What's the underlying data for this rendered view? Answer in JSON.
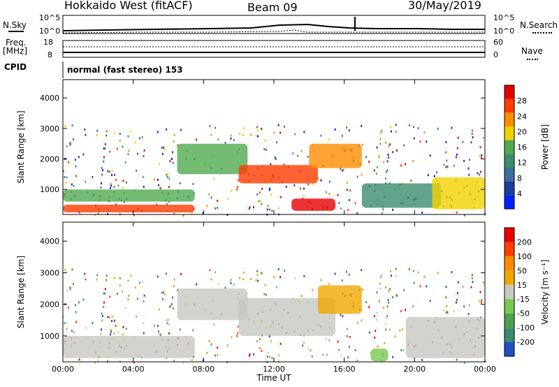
{
  "header": {
    "station": "Hokkaido West (fitACF)",
    "beam": "Beam 09",
    "date": "30/May/2019"
  },
  "left_labels": {
    "nsky": "N.Sky",
    "freq_top": "Freq.",
    "freq_unit": "[MHz]",
    "cpid": "CPID"
  },
  "right_labels": {
    "nsearch": "N.Search",
    "nave": "Nave"
  },
  "noise_axis": {
    "left_ticks": [
      "10^5",
      "10^0"
    ],
    "right_ticks": [
      "10^5",
      "10^0"
    ]
  },
  "freq_axis": {
    "left_ticks": [
      "18",
      "8"
    ],
    "right_ticks": [
      "60",
      "0"
    ]
  },
  "cpid_text": "normal (fast stereo) 153",
  "x_axis": {
    "label": "Time UT",
    "ticks": [
      "00:00",
      "04:00",
      "08:00",
      "12:00",
      "16:00",
      "20:00",
      "00:00"
    ]
  },
  "power_panel": {
    "ylabel": "Slant Range [km]",
    "yticks": [
      "1000",
      "2000",
      "3000",
      "4000"
    ],
    "colorbar_label": "Power [dB]",
    "colorbar_ticks": [
      "28",
      "24",
      "20",
      "16",
      "12",
      "8",
      "4"
    ]
  },
  "velocity_panel": {
    "ylabel": "Slant Range [km]",
    "yticks": [
      "1000",
      "2000",
      "3000",
      "4000"
    ],
    "colorbar_label": "Velocity [m s⁻¹]",
    "colorbar_ticks": [
      "200",
      "100",
      "50",
      "15",
      "-15",
      "-50",
      "-100",
      "-200"
    ]
  },
  "chart_data": [
    {
      "type": "heatmap",
      "title": "Power",
      "xlabel": "Time UT",
      "ylabel": "Slant Range [km]",
      "xlim": [
        0,
        24
      ],
      "ylim": [
        180,
        4600
      ],
      "colorbar": {
        "label": "Power [dB]",
        "range": [
          0,
          30
        ],
        "colors": [
          "#0020ff",
          "#1e3c9b",
          "#3c6ea0",
          "#3c8c6e",
          "#50aa50",
          "#f0d200",
          "#ff8c00",
          "#ff3c00",
          "#e60000"
        ]
      },
      "regions": [
        {
          "t": [
            0,
            7.5
          ],
          "r": [
            250,
            500
          ],
          "value": 26
        },
        {
          "t": [
            0,
            7.5
          ],
          "r": [
            600,
            1000
          ],
          "value": 14
        },
        {
          "t": [
            6.5,
            10.5
          ],
          "r": [
            1500,
            2500
          ],
          "value": 16
        },
        {
          "t": [
            10,
            14.5
          ],
          "r": [
            1200,
            1800
          ],
          "value": 24
        },
        {
          "t": [
            13,
            15.5
          ],
          "r": [
            300,
            700
          ],
          "value": 28
        },
        {
          "t": [
            14,
            17
          ],
          "r": [
            1700,
            2500
          ],
          "value": 20
        },
        {
          "t": [
            17,
            21.5
          ],
          "r": [
            400,
            1200
          ],
          "value": 10
        },
        {
          "t": [
            21,
            24
          ],
          "r": [
            350,
            1400
          ],
          "value": 18
        }
      ]
    },
    {
      "type": "heatmap",
      "title": "Velocity",
      "xlabel": "Time UT",
      "ylabel": "Slant Range [km]",
      "xlim": [
        0,
        24
      ],
      "ylim": [
        180,
        4600
      ],
      "colorbar": {
        "label": "Velocity [m s⁻¹]",
        "range": [
          -250,
          250
        ],
        "colors": [
          "#2050c8",
          "#3c8c6e",
          "#50a050",
          "#78c850",
          "#c8c8c0",
          "#f0a800",
          "#ff8c00",
          "#ff4000",
          "#e60000"
        ]
      },
      "regions": [
        {
          "t": [
            0,
            7.5
          ],
          "r": [
            300,
            1000
          ],
          "value": 0
        },
        {
          "t": [
            6.5,
            10.5
          ],
          "r": [
            1500,
            2500
          ],
          "value": 0
        },
        {
          "t": [
            10,
            15.5
          ],
          "r": [
            1000,
            2200
          ],
          "value": 0
        },
        {
          "t": [
            14.5,
            17
          ],
          "r": [
            1700,
            2600
          ],
          "value": 40
        },
        {
          "t": [
            17.5,
            18.5
          ],
          "r": [
            200,
            600
          ],
          "value": -60
        },
        {
          "t": [
            19.5,
            24
          ],
          "r": [
            300,
            1600
          ],
          "value": 0
        }
      ]
    }
  ]
}
